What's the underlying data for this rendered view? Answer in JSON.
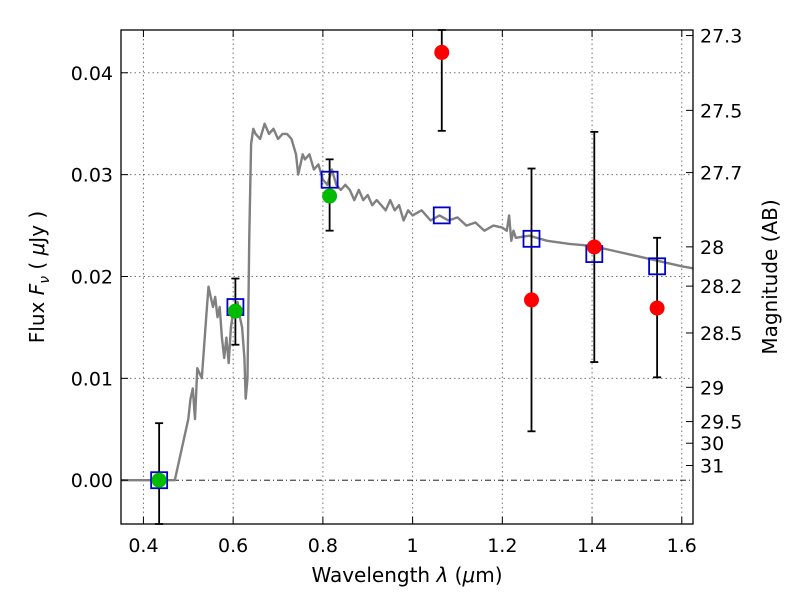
{
  "chart_data": {
    "type": "scatter",
    "title": "",
    "xlabel_prefix": "Wavelength  ",
    "xlabel_lambda": "λ",
    "xlabel_suffix": " (",
    "xlabel_mu": "μ",
    "xlabel_unit": "m)",
    "ylabel_prefix": "Flux  ",
    "ylabel_F": "F",
    "ylabel_sub": "ν",
    "ylabel_mid": "  ( ",
    "ylabel_mu": "μ",
    "ylabel_unit": "Jy )",
    "y2label": "Magnitude (AB)",
    "xlim": [
      0.35,
      1.625
    ],
    "ylim": [
      -0.0043,
      0.0442
    ],
    "grid": true,
    "x_ticks": [
      {
        "value": 0.4,
        "label": "0.4"
      },
      {
        "value": 0.6,
        "label": "0.6"
      },
      {
        "value": 0.8,
        "label": "0.8"
      },
      {
        "value": 1.0,
        "label": "1"
      },
      {
        "value": 1.2,
        "label": "1.2"
      },
      {
        "value": 1.4,
        "label": "1.4"
      },
      {
        "value": 1.6,
        "label": "1.6"
      }
    ],
    "y_ticks": [
      {
        "value": 0.0,
        "label": "0.00"
      },
      {
        "value": 0.01,
        "label": "0.01"
      },
      {
        "value": 0.02,
        "label": "0.02"
      },
      {
        "value": 0.03,
        "label": "0.03"
      },
      {
        "value": 0.04,
        "label": "0.04"
      }
    ],
    "mag_ticks": [
      {
        "value": 27.3,
        "label": "27.3"
      },
      {
        "value": 27.5,
        "label": "27.5"
      },
      {
        "value": 27.7,
        "label": "27.7"
      },
      {
        "value": 28.0,
        "label": "28"
      },
      {
        "value": 28.2,
        "label": "28.2"
      },
      {
        "value": 28.5,
        "label": "28.5"
      },
      {
        "value": 29.0,
        "label": "29"
      },
      {
        "value": 29.5,
        "label": "29.5"
      },
      {
        "value": 30.0,
        "label": "30"
      },
      {
        "value": 31.0,
        "label": "31"
      }
    ],
    "model_spectrum": {
      "color": "#808080",
      "x": [
        0.35,
        0.47,
        0.48,
        0.49,
        0.5,
        0.505,
        0.51,
        0.515,
        0.52,
        0.53,
        0.535,
        0.54,
        0.545,
        0.55,
        0.555,
        0.56,
        0.565,
        0.57,
        0.575,
        0.58,
        0.585,
        0.59,
        0.595,
        0.6,
        0.605,
        0.61,
        0.615,
        0.62,
        0.625,
        0.628,
        0.632,
        0.636,
        0.64,
        0.645,
        0.65,
        0.66,
        0.67,
        0.68,
        0.69,
        0.7,
        0.71,
        0.72,
        0.73,
        0.74,
        0.745,
        0.75,
        0.755,
        0.76,
        0.77,
        0.78,
        0.79,
        0.8,
        0.81,
        0.82,
        0.83,
        0.84,
        0.85,
        0.86,
        0.87,
        0.88,
        0.89,
        0.9,
        0.91,
        0.92,
        0.93,
        0.94,
        0.95,
        0.96,
        0.97,
        0.98,
        0.99,
        1.0,
        1.02,
        1.04,
        1.06,
        1.08,
        1.1,
        1.12,
        1.14,
        1.16,
        1.18,
        1.2,
        1.21,
        1.215,
        1.22,
        1.225,
        1.23,
        1.26,
        1.3,
        1.35,
        1.4,
        1.45,
        1.5,
        1.55,
        1.6,
        1.625
      ],
      "y": [
        0.0,
        0.0,
        0.002,
        0.004,
        0.006,
        0.008,
        0.009,
        0.006,
        0.011,
        0.01,
        0.013,
        0.016,
        0.019,
        0.018,
        0.017,
        0.018,
        0.016,
        0.017,
        0.014,
        0.012,
        0.014,
        0.0115,
        0.015,
        0.0165,
        0.016,
        0.0175,
        0.016,
        0.015,
        0.012,
        0.008,
        0.01,
        0.024,
        0.033,
        0.0345,
        0.034,
        0.0335,
        0.035,
        0.034,
        0.0345,
        0.0335,
        0.034,
        0.034,
        0.0335,
        0.032,
        0.03,
        0.031,
        0.032,
        0.0315,
        0.032,
        0.0305,
        0.031,
        0.0295,
        0.029,
        0.0305,
        0.029,
        0.0285,
        0.029,
        0.0285,
        0.0275,
        0.0285,
        0.0275,
        0.028,
        0.027,
        0.0275,
        0.027,
        0.0265,
        0.0275,
        0.0265,
        0.027,
        0.0255,
        0.0265,
        0.026,
        0.0265,
        0.0255,
        0.026,
        0.0255,
        0.0258,
        0.025,
        0.0253,
        0.0245,
        0.025,
        0.0248,
        0.0245,
        0.026,
        0.0235,
        0.0245,
        0.0238,
        0.024,
        0.0235,
        0.0232,
        0.023,
        0.0225,
        0.022,
        0.0215,
        0.021,
        0.0208
      ]
    },
    "series": [
      {
        "marker": "square",
        "color": "#0000cc",
        "x": [
          0.435,
          0.605,
          0.815,
          1.065,
          1.265,
          1.405,
          1.545
        ],
        "y": [
          0.0,
          0.017,
          0.0295,
          0.026,
          0.0237,
          0.0222,
          0.021
        ]
      },
      {
        "marker": "circle",
        "color": "#00bb00",
        "x": [
          0.435,
          0.605,
          0.815
        ],
        "y": [
          0.0,
          0.0166,
          0.0279
        ]
      },
      {
        "marker": "circle",
        "color": "#ff0000",
        "x": [
          1.065,
          1.265,
          1.405,
          1.545
        ],
        "y": [
          0.042,
          0.0177,
          0.0229,
          0.0169
        ],
        "yerr_low": [
          0.0343,
          0.0048,
          0.0116,
          0.0101
        ],
        "yerr_high": [
          0.0442,
          0.0306,
          0.0342,
          0.0238
        ]
      }
    ],
    "errorbars_green": {
      "x": [
        0.435,
        0.605,
        0.815
      ],
      "low": [
        -0.0043,
        0.0133,
        0.0245
      ],
      "high": [
        0.0056,
        0.0198,
        0.0315
      ]
    }
  }
}
